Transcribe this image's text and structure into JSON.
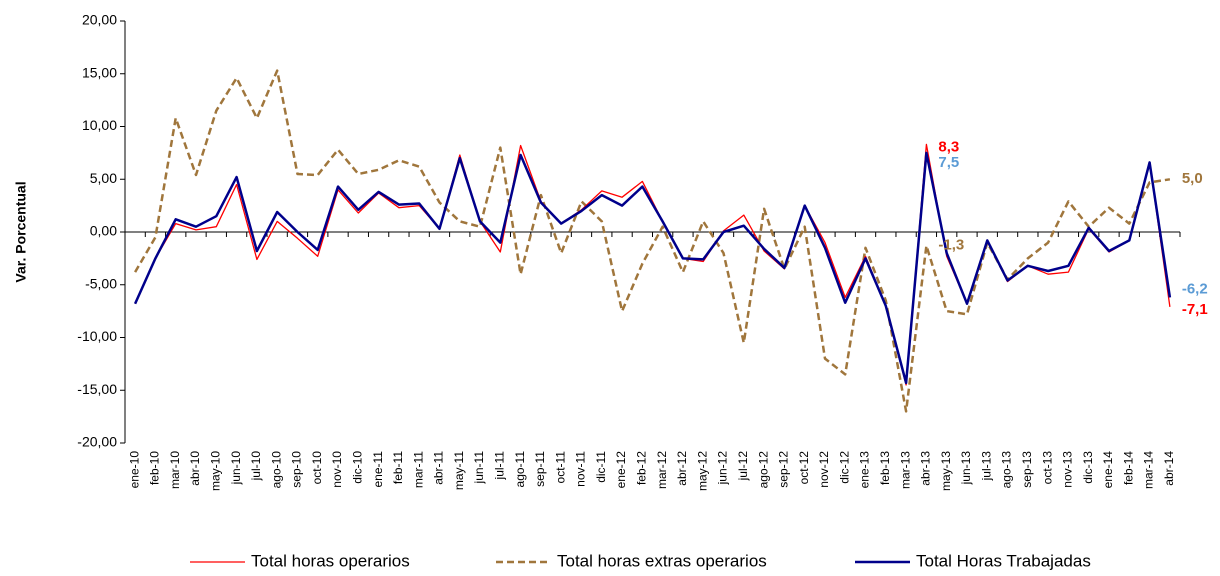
{
  "chart_data": {
    "type": "line",
    "y_label": "Var. Porcentual",
    "categories": [
      "ene-10",
      "feb-10",
      "mar-10",
      "abr-10",
      "may-10",
      "jun-10",
      "jul-10",
      "ago-10",
      "sep-10",
      "oct-10",
      "nov-10",
      "dic-10",
      "ene-11",
      "feb-11",
      "mar-11",
      "abr-11",
      "may-11",
      "jun-11",
      "jul-11",
      "ago-11",
      "sep-11",
      "oct-11",
      "nov-11",
      "dic-11",
      "ene-12",
      "feb-12",
      "mar-12",
      "abr-12",
      "may-12",
      "jun-12",
      "jul-12",
      "ago-12",
      "sep-12",
      "oct-12",
      "nov-12",
      "dic-12",
      "ene-13",
      "feb-13",
      "mar-13",
      "abr-13",
      "may-13",
      "jun-13",
      "jul-13",
      "ago-13",
      "sep-13",
      "oct-13",
      "nov-13",
      "dic-13",
      "ene-14",
      "feb-14",
      "mar-14",
      "abr-14"
    ],
    "series": [
      {
        "name": "Total horas operarios",
        "color": "#ff0000",
        "dash": false,
        "label_color": "#ff0000",
        "values": [
          -6.8,
          -2.5,
          0.8,
          0.2,
          0.5,
          4.5,
          -2.6,
          1.0,
          -0.6,
          -2.3,
          4.0,
          1.8,
          3.7,
          2.3,
          2.5,
          0.3,
          7.3,
          1.0,
          -1.9,
          8.2,
          2.9,
          0.8,
          2.1,
          3.9,
          3.3,
          4.8,
          1.0,
          -2.5,
          -2.8,
          0.1,
          1.6,
          -1.8,
          -3.5,
          2.5,
          -1.0,
          -6.2,
          -2.3,
          -7.0,
          -14.5,
          8.3,
          -2.3,
          -6.8,
          -0.8,
          -4.7,
          -3.2,
          -4.0,
          -3.8,
          0.3,
          -1.9,
          -0.8,
          6.6,
          -7.1
        ],
        "value_labels": [
          null,
          null,
          null,
          null,
          null,
          null,
          null,
          null,
          null,
          null,
          null,
          null,
          null,
          null,
          null,
          null,
          null,
          null,
          null,
          null,
          null,
          null,
          null,
          null,
          null,
          null,
          null,
          null,
          null,
          null,
          null,
          null,
          null,
          null,
          null,
          null,
          null,
          null,
          null,
          "8,3",
          null,
          null,
          null,
          null,
          null,
          null,
          null,
          null,
          null,
          null,
          null,
          "-7,1"
        ]
      },
      {
        "name": "Total horas extras operarios",
        "color": "#a0763c",
        "dash": true,
        "label_color": "#a0763c",
        "values": [
          -3.8,
          -0.5,
          10.8,
          5.4,
          11.5,
          14.6,
          10.8,
          15.3,
          5.5,
          5.4,
          7.8,
          5.5,
          5.9,
          6.8,
          6.2,
          2.8,
          1.0,
          0.5,
          8.0,
          -4.0,
          3.5,
          -2.0,
          2.9,
          1.0,
          -7.5,
          -3.0,
          0.5,
          -3.8,
          1.0,
          -2.0,
          -10.5,
          2.2,
          -3.5,
          0.5,
          -12.0,
          -13.5,
          -1.5,
          -6.5,
          -17.0,
          -1.3,
          -7.5,
          -7.8,
          -1.0,
          -4.5,
          -2.5,
          -1.0,
          2.9,
          0.5,
          2.3,
          0.8,
          4.7,
          5.0
        ],
        "value_labels": [
          null,
          null,
          null,
          null,
          null,
          null,
          null,
          null,
          null,
          null,
          null,
          null,
          null,
          null,
          null,
          null,
          null,
          null,
          null,
          null,
          null,
          null,
          null,
          null,
          null,
          null,
          null,
          null,
          null,
          null,
          null,
          null,
          null,
          null,
          null,
          null,
          null,
          null,
          null,
          "-1,3",
          null,
          null,
          null,
          null,
          null,
          null,
          null,
          null,
          null,
          null,
          null,
          "5,0"
        ]
      },
      {
        "name": "Total Horas Trabajadas",
        "color": "#00008b",
        "dash": false,
        "label_color": "#5b9bd5",
        "values": [
          -6.8,
          -2.5,
          1.2,
          0.5,
          1.5,
          5.2,
          -1.8,
          1.9,
          0.0,
          -1.7,
          4.3,
          2.1,
          3.8,
          2.6,
          2.7,
          0.3,
          7.0,
          1.0,
          -1.0,
          7.3,
          2.8,
          0.8,
          2.0,
          3.5,
          2.5,
          4.3,
          1.0,
          -2.5,
          -2.6,
          0.0,
          0.6,
          -1.6,
          -3.4,
          2.5,
          -1.5,
          -6.7,
          -2.5,
          -7.0,
          -14.3,
          7.5,
          -2.0,
          -6.8,
          -0.8,
          -4.6,
          -3.2,
          -3.7,
          -3.2,
          0.4,
          -1.8,
          -0.8,
          6.6,
          -6.2
        ],
        "value_labels": [
          null,
          null,
          null,
          null,
          null,
          null,
          null,
          null,
          null,
          null,
          null,
          null,
          null,
          null,
          null,
          null,
          null,
          null,
          null,
          null,
          null,
          null,
          null,
          null,
          null,
          null,
          null,
          null,
          null,
          null,
          null,
          null,
          null,
          null,
          null,
          null,
          null,
          null,
          null,
          "7,5",
          null,
          null,
          null,
          null,
          null,
          null,
          null,
          null,
          null,
          null,
          null,
          "-6,2"
        ]
      }
    ],
    "ylim": [
      -20,
      20
    ],
    "yticks": [
      {
        "value": -20,
        "label": "-20,00"
      },
      {
        "value": -15,
        "label": "-15,00"
      },
      {
        "value": -10,
        "label": "-10,00"
      },
      {
        "value": -5,
        "label": "-5,00"
      },
      {
        "value": 0,
        "label": "0,00"
      },
      {
        "value": 5,
        "label": "5,00"
      },
      {
        "value": 10,
        "label": "10,00"
      },
      {
        "value": 15,
        "label": "15,00"
      },
      {
        "value": 20,
        "label": "20,00"
      }
    ],
    "grid": false,
    "legend": "bottom"
  }
}
